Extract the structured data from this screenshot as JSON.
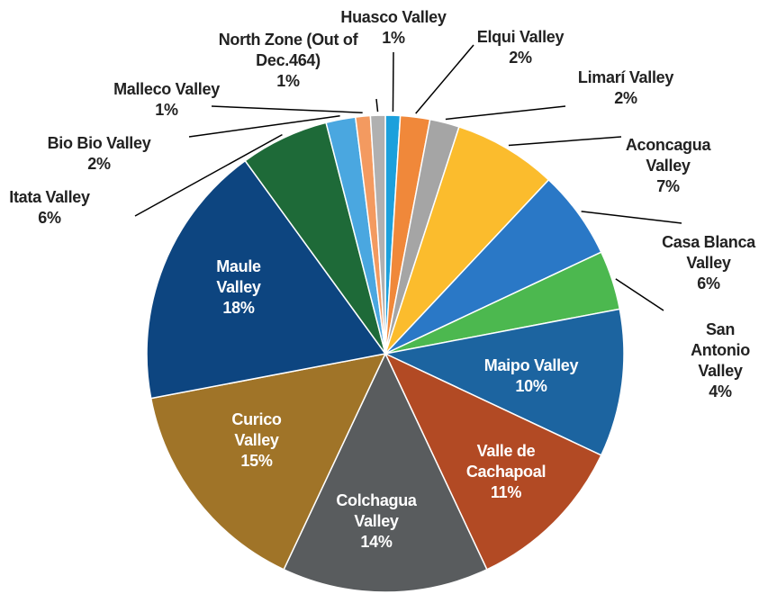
{
  "chart_data": {
    "type": "pie",
    "categories": [
      "Huasco Valley",
      "Elqui Valley",
      "Limarí Valley",
      "Aconcagua Valley",
      "Casa Blanca Valley",
      "San Antonio Valley",
      "Maipo Valley",
      "Valle de Cachapoal",
      "Colchagua Valley",
      "Curico Valley",
      "Maule Valley",
      "Itata Valley",
      "Bio Bio  Valley",
      "Malleco Valley",
      "North Zone (Out of Dec.464)"
    ],
    "values": [
      1,
      2,
      2,
      7,
      6,
      4,
      10,
      11,
      14,
      15,
      18,
      6,
      2,
      1,
      1
    ],
    "value_labels": [
      "1%",
      "2%",
      "2%",
      "7%",
      "6%",
      "4%",
      "10%",
      "11%",
      "14%",
      "15%",
      "18%",
      "6%",
      "2%",
      "1%",
      "1%"
    ],
    "colors": [
      "#1ca0dc",
      "#f0883a",
      "#a5a5a5",
      "#fbbc2d",
      "#2a78c6",
      "#4cb84f",
      "#1c64a0",
      "#b24a24",
      "#595c5e",
      "#a07428",
      "#0d4580",
      "#1e6a38",
      "#4aa7e0",
      "#f39a60",
      "#b0b0b0"
    ]
  }
}
